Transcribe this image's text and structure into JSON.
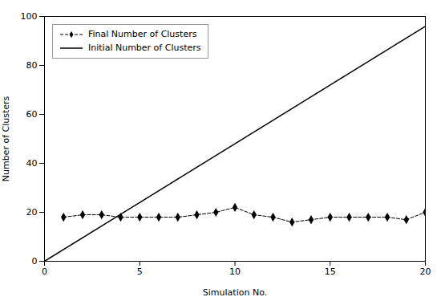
{
  "chart_data": {
    "type": "line",
    "xlabel": "Simulation No.",
    "ylabel": "Number of Clusters",
    "xlim": [
      0,
      20
    ],
    "ylim": [
      0,
      100
    ],
    "xticks": [
      0,
      5,
      10,
      15,
      20
    ],
    "yticks": [
      0,
      20,
      40,
      60,
      80,
      100
    ],
    "grid": false,
    "legend": "upper left",
    "series": [
      {
        "name": "Initial Number of Clusters",
        "color": "#000000",
        "line_style": "solid",
        "x": [
          0,
          20
        ],
        "values": [
          0,
          96
        ]
      },
      {
        "name": "Final Number of Clusters",
        "color": "#000000",
        "line_style": "dashed",
        "marker": "diamond",
        "x": [
          1,
          2,
          3,
          4,
          5,
          6,
          7,
          8,
          9,
          10,
          11,
          12,
          13,
          14,
          15,
          16,
          17,
          18,
          19,
          20
        ],
        "values": [
          18,
          19,
          19,
          18,
          18,
          18,
          18,
          19,
          20,
          22,
          19,
          18,
          16,
          17,
          18,
          18,
          18,
          18,
          17,
          20
        ]
      }
    ]
  }
}
